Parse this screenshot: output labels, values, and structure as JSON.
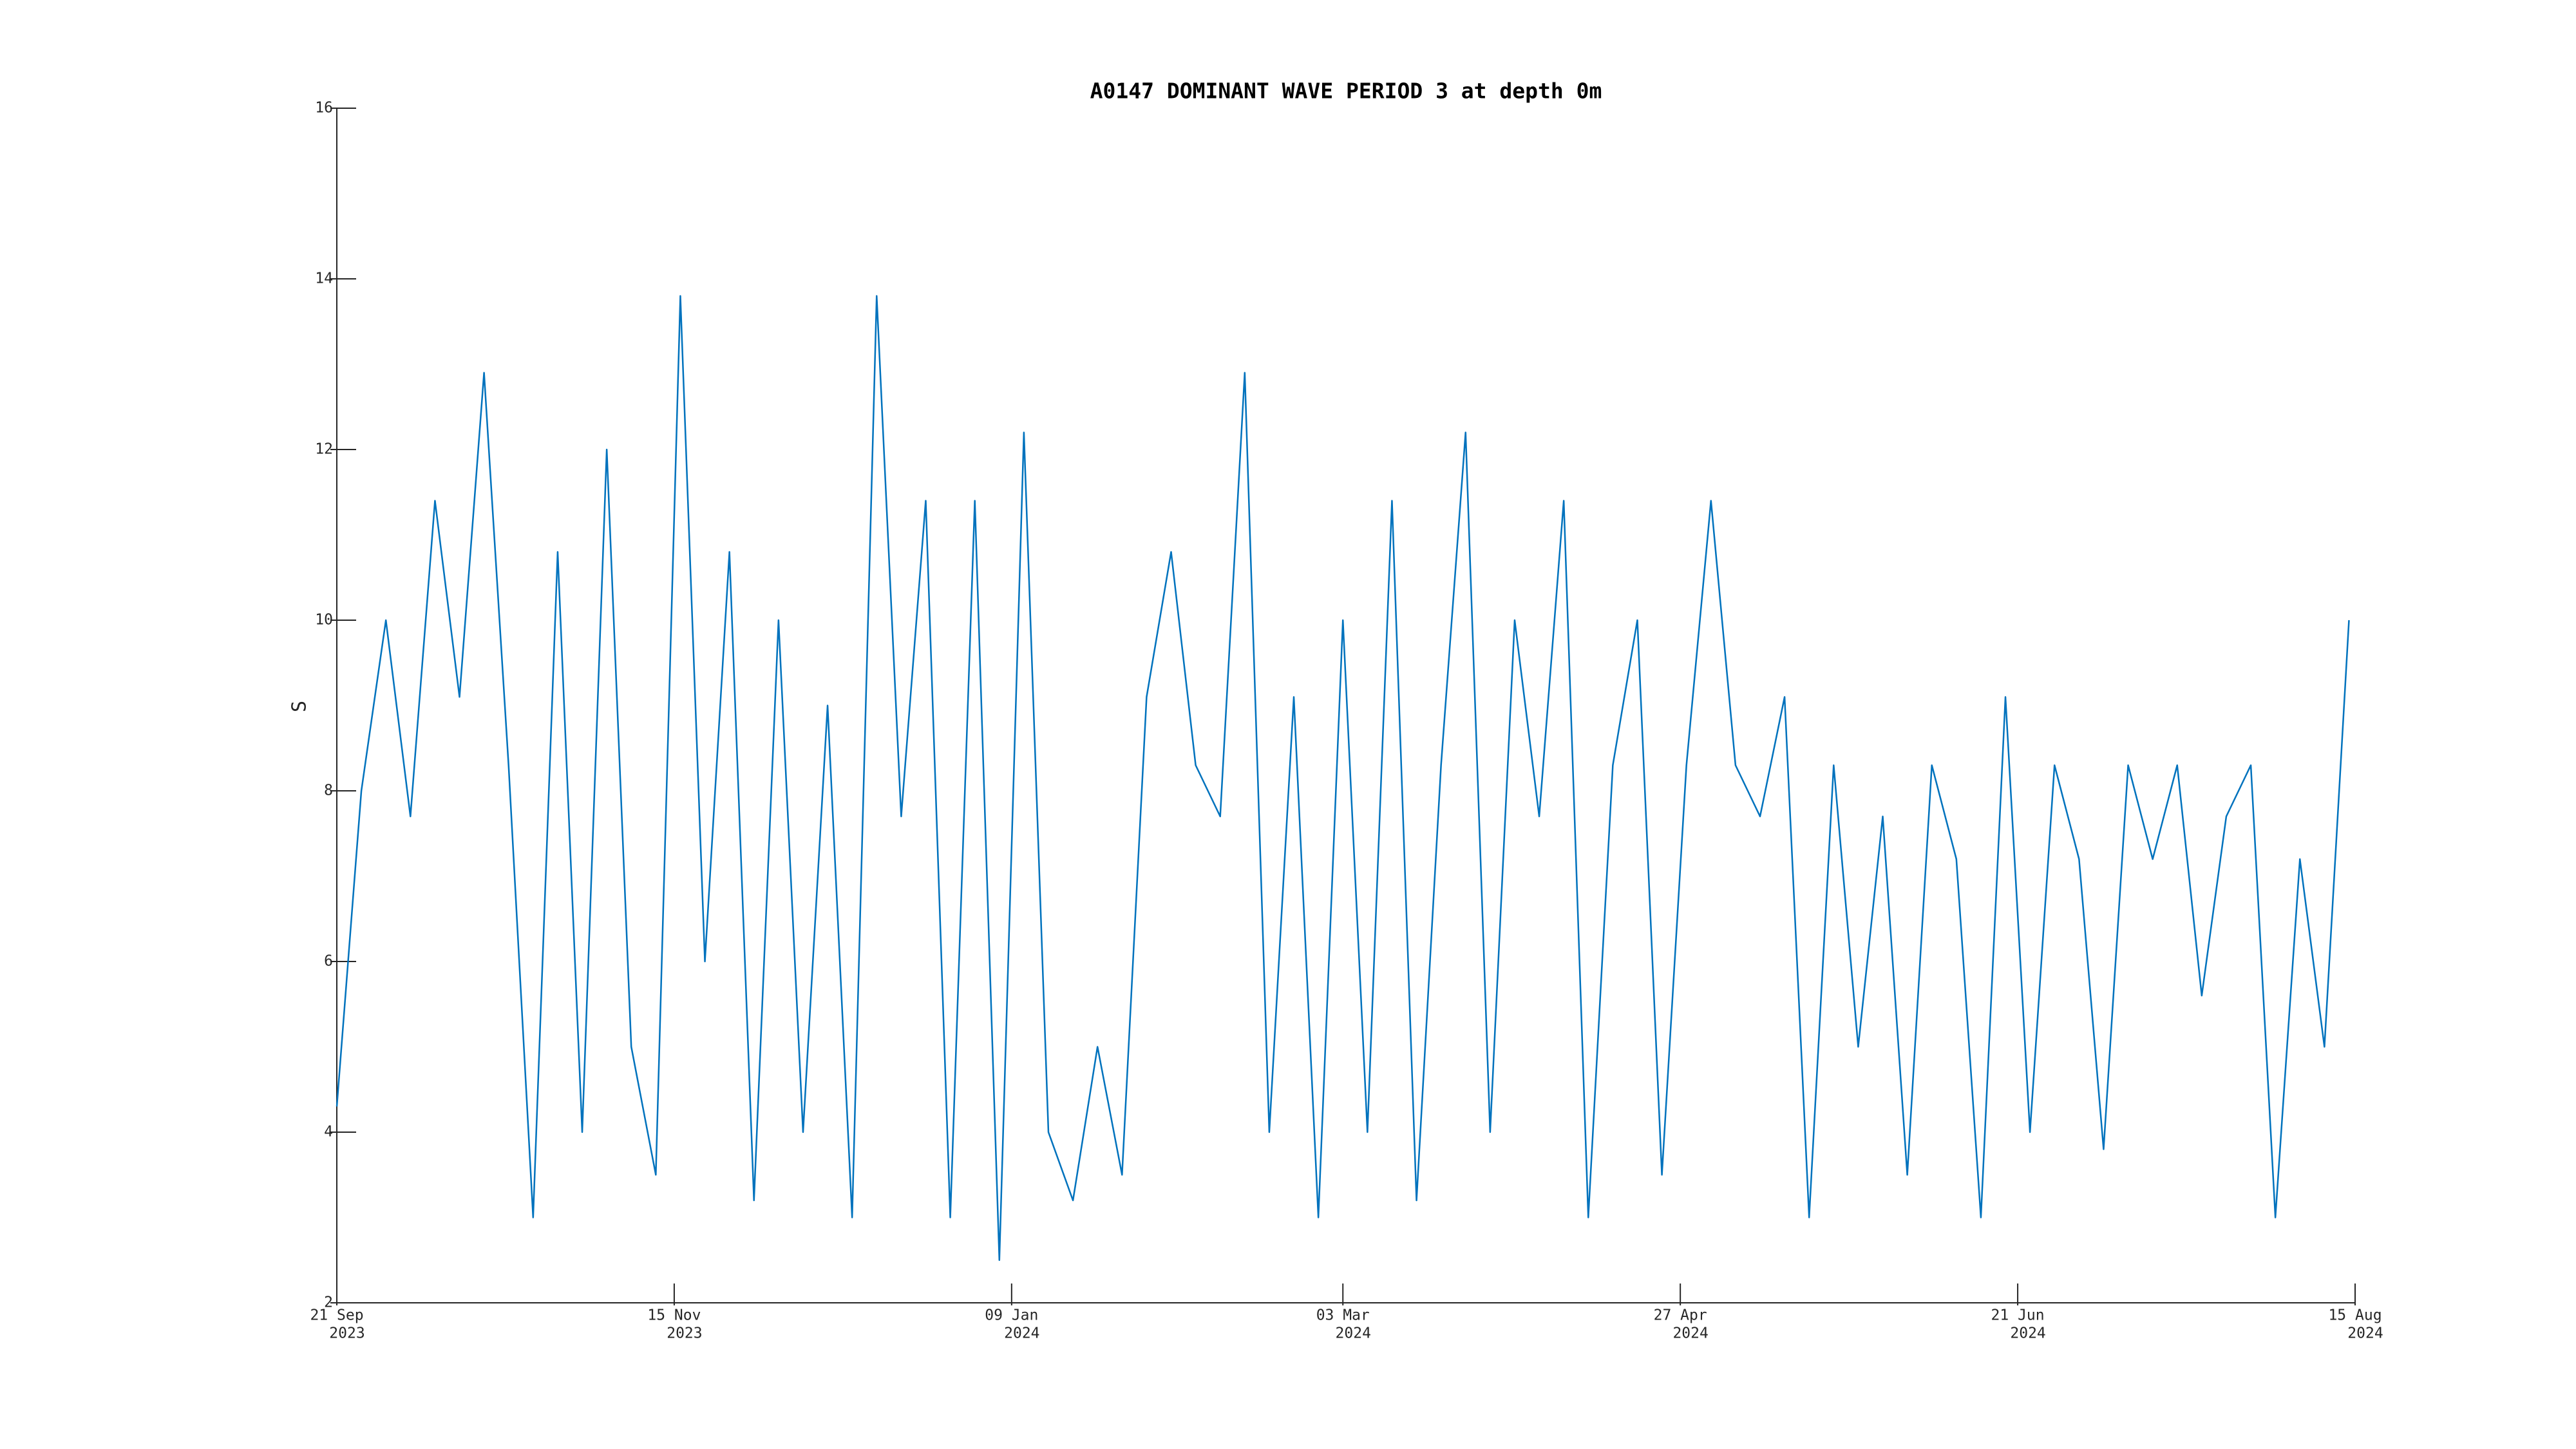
{
  "chart_data": {
    "type": "line",
    "title": "A0147 DOMINANT WAVE PERIOD 3 at depth 0m",
    "y_label": "S",
    "x": [
      "2023-09-21",
      "2023-09-25",
      "2023-09-29",
      "2023-10-03",
      "2023-10-07",
      "2023-10-11",
      "2023-10-15",
      "2023-10-19",
      "2023-10-23",
      "2023-10-27",
      "2023-10-31",
      "2023-11-04",
      "2023-11-08",
      "2023-11-12",
      "2023-11-16",
      "2023-11-20",
      "2023-11-24",
      "2023-11-28",
      "2023-12-02",
      "2023-12-06",
      "2023-12-10",
      "2023-12-14",
      "2023-12-18",
      "2023-12-22",
      "2023-12-26",
      "2023-12-30",
      "2024-01-03",
      "2024-01-07",
      "2024-01-11",
      "2024-01-15",
      "2024-01-19",
      "2024-01-23",
      "2024-01-27",
      "2024-01-31",
      "2024-02-04",
      "2024-02-08",
      "2024-02-12",
      "2024-02-16",
      "2024-02-20",
      "2024-02-24",
      "2024-02-28",
      "2024-03-03",
      "2024-03-07",
      "2024-03-11",
      "2024-03-15",
      "2024-03-19",
      "2024-03-23",
      "2024-03-27",
      "2024-03-31",
      "2024-04-04",
      "2024-04-08",
      "2024-04-12",
      "2024-04-16",
      "2024-04-20",
      "2024-04-24",
      "2024-04-28",
      "2024-05-02",
      "2024-05-06",
      "2024-05-10",
      "2024-05-14",
      "2024-05-18",
      "2024-05-22",
      "2024-05-26",
      "2024-05-30",
      "2024-06-03",
      "2024-06-07",
      "2024-06-11",
      "2024-06-15",
      "2024-06-19",
      "2024-06-23",
      "2024-06-27",
      "2024-07-01",
      "2024-07-05",
      "2024-07-09",
      "2024-07-13",
      "2024-07-17",
      "2024-07-21",
      "2024-07-25",
      "2024-07-29",
      "2024-08-02",
      "2024-08-06",
      "2024-08-10",
      "2024-08-14"
    ],
    "series": [
      {
        "name": "A0147",
        "color": "#0072bd",
        "values": [
          4.3,
          8,
          10,
          7.7,
          11.4,
          9.1,
          12.9,
          8.3,
          3,
          10.8,
          4,
          12,
          5,
          3.5,
          13.8,
          6,
          10.8,
          3.2,
          10,
          4,
          9,
          3,
          13.8,
          7.7,
          11.4,
          3,
          11.4,
          2.5,
          12.2,
          4,
          3.2,
          5,
          3.5,
          9.1,
          10.8,
          8.3,
          7.7,
          12.9,
          4,
          9.1,
          3,
          10,
          4,
          11.4,
          3.2,
          8.3,
          12.2,
          4,
          10,
          7.7,
          11.4,
          3,
          8.3,
          10,
          3.5,
          8.3,
          11.4,
          8.3,
          7.7,
          9.1,
          3,
          8.3,
          5,
          7.7,
          3.5,
          8.3,
          7.2,
          3,
          9.1,
          4,
          8.3,
          7.2,
          3.8,
          8.3,
          7.2,
          8.3,
          5.6,
          7.7,
          8.3,
          3,
          7.2,
          5,
          10
        ]
      }
    ],
    "xlim": [
      "2023-09-21",
      "2024-08-15"
    ],
    "xticks": [
      {
        "value": "2023-09-21",
        "label": [
          "21 Sep",
          "2023"
        ]
      },
      {
        "value": "2023-11-15",
        "label": [
          "15 Nov",
          "2023"
        ]
      },
      {
        "value": "2024-01-09",
        "label": [
          "09 Jan",
          "2024"
        ]
      },
      {
        "value": "2024-03-03",
        "label": [
          "03 Mar",
          "2024"
        ]
      },
      {
        "value": "2024-04-27",
        "label": [
          "27 Apr",
          "2024"
        ]
      },
      {
        "value": "2024-06-21",
        "label": [
          "21 Jun",
          "2024"
        ]
      },
      {
        "value": "2024-08-15",
        "label": [
          "15 Aug",
          "2024"
        ]
      }
    ],
    "ylim": [
      2,
      16
    ],
    "yticks": [
      2,
      4,
      6,
      8,
      10,
      12,
      14,
      16
    ]
  }
}
